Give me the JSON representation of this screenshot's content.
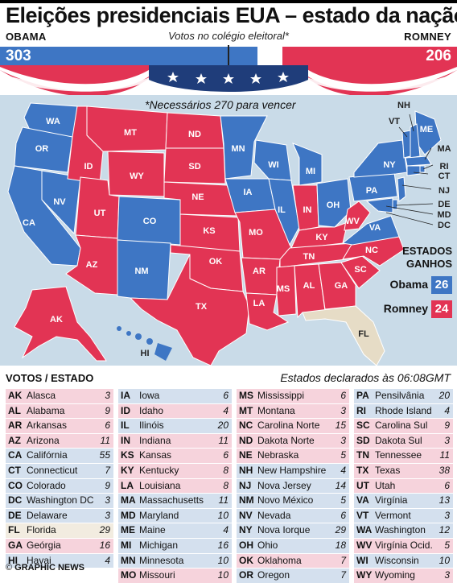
{
  "title": "Eleições presidenciais EUA – estado da nação",
  "subtitle": "Votos no colégio eleitoral*",
  "candidates": {
    "obama": {
      "name": "Obama",
      "votes": "303",
      "color": "#3e76c4"
    },
    "romney": {
      "name": "Romney",
      "votes": "206",
      "color": "#e23454"
    }
  },
  "needed_note": "*Necessários 270 para vencer",
  "legend": {
    "title_line1": "Estados",
    "title_line2": "ganhos",
    "obama_label": "Obama",
    "obama_count": "26",
    "romney_label": "Romney",
    "romney_count": "24"
  },
  "map_labels": [
    "WA",
    "OR",
    "CA",
    "NV",
    "ID",
    "MT",
    "WY",
    "UT",
    "AZ",
    "CO",
    "NM",
    "ND",
    "SD",
    "NE",
    "KS",
    "OK",
    "TX",
    "MN",
    "IA",
    "MO",
    "AR",
    "LA",
    "WI",
    "IL",
    "MI",
    "IN",
    "OH",
    "KY",
    "TN",
    "MS",
    "AL",
    "GA",
    "FL",
    "SC",
    "NC",
    "VA",
    "WV",
    "PA",
    "NY",
    "ME",
    "NH",
    "VT",
    "MA",
    "RI",
    "CT",
    "NJ",
    "DE",
    "MD",
    "DC",
    "AK",
    "HI"
  ],
  "table": {
    "header": "Votos / Estado",
    "declared": "Estados declarados às 06:08GMT",
    "columns": [
      [
        {
          "ab": "AK",
          "name": "Alasca",
          "ev": "3",
          "w": "R"
        },
        {
          "ab": "AL",
          "name": "Alabama",
          "ev": "9",
          "w": "R"
        },
        {
          "ab": "AR",
          "name": "Arkansas",
          "ev": "6",
          "w": "R"
        },
        {
          "ab": "AZ",
          "name": "Arizona",
          "ev": "11",
          "w": "R"
        },
        {
          "ab": "CA",
          "name": "Califórnia",
          "ev": "55",
          "w": "D"
        },
        {
          "ab": "CT",
          "name": "Connecticut",
          "ev": "7",
          "w": "D"
        },
        {
          "ab": "CO",
          "name": "Colorado",
          "ev": "9",
          "w": "D"
        },
        {
          "ab": "DC",
          "name": "Washington DC",
          "ev": "3",
          "w": "D"
        },
        {
          "ab": "DE",
          "name": "Delaware",
          "ev": "3",
          "w": "D"
        },
        {
          "ab": "FL",
          "name": "Florida",
          "ev": "29",
          "w": "U"
        },
        {
          "ab": "GA",
          "name": "Geórgia",
          "ev": "16",
          "w": "R"
        },
        {
          "ab": "HI",
          "name": "Havai",
          "ev": "4",
          "w": "D"
        }
      ],
      [
        {
          "ab": "IA",
          "name": "Iowa",
          "ev": "6",
          "w": "D"
        },
        {
          "ab": "ID",
          "name": "Idaho",
          "ev": "4",
          "w": "R"
        },
        {
          "ab": "IL",
          "name": "Ilinóis",
          "ev": "20",
          "w": "D"
        },
        {
          "ab": "IN",
          "name": "Indiana",
          "ev": "11",
          "w": "R"
        },
        {
          "ab": "KS",
          "name": "Kansas",
          "ev": "6",
          "w": "R"
        },
        {
          "ab": "KY",
          "name": "Kentucky",
          "ev": "8",
          "w": "R"
        },
        {
          "ab": "LA",
          "name": "Louisiana",
          "ev": "8",
          "w": "R"
        },
        {
          "ab": "MA",
          "name": "Massachusetts",
          "ev": "11",
          "w": "D"
        },
        {
          "ab": "MD",
          "name": "Maryland",
          "ev": "10",
          "w": "D"
        },
        {
          "ab": "ME",
          "name": "Maine",
          "ev": "4",
          "w": "D"
        },
        {
          "ab": "MI",
          "name": "Michigan",
          "ev": "16",
          "w": "D"
        },
        {
          "ab": "MN",
          "name": "Minnesota",
          "ev": "10",
          "w": "D"
        },
        {
          "ab": "MO",
          "name": "Missouri",
          "ev": "10",
          "w": "R"
        }
      ],
      [
        {
          "ab": "MS",
          "name": "Mississippi",
          "ev": "6",
          "w": "R"
        },
        {
          "ab": "MT",
          "name": "Montana",
          "ev": "3",
          "w": "R"
        },
        {
          "ab": "NC",
          "name": "Carolina Norte",
          "ev": "15",
          "w": "R"
        },
        {
          "ab": "ND",
          "name": "Dakota Norte",
          "ev": "3",
          "w": "R"
        },
        {
          "ab": "NE",
          "name": "Nebraska",
          "ev": "5",
          "w": "R"
        },
        {
          "ab": "NH",
          "name": "New Hampshire",
          "ev": "4",
          "w": "D"
        },
        {
          "ab": "NJ",
          "name": "Nova Jersey",
          "ev": "14",
          "w": "D"
        },
        {
          "ab": "NM",
          "name": "Novo México",
          "ev": "5",
          "w": "D"
        },
        {
          "ab": "NV",
          "name": "Nevada",
          "ev": "6",
          "w": "D"
        },
        {
          "ab": "NY",
          "name": "Nova Iorque",
          "ev": "29",
          "w": "D"
        },
        {
          "ab": "OH",
          "name": "Ohio",
          "ev": "18",
          "w": "D"
        },
        {
          "ab": "OK",
          "name": "Oklahoma",
          "ev": "7",
          "w": "R"
        },
        {
          "ab": "OR",
          "name": "Oregon",
          "ev": "7",
          "w": "D"
        }
      ],
      [
        {
          "ab": "PA",
          "name": "Pensilvânia",
          "ev": "20",
          "w": "D"
        },
        {
          "ab": "RI",
          "name": "Rhode Island",
          "ev": "4",
          "w": "D"
        },
        {
          "ab": "SC",
          "name": "Carolina Sul",
          "ev": "9",
          "w": "R"
        },
        {
          "ab": "SD",
          "name": "Dakota Sul",
          "ev": "3",
          "w": "R"
        },
        {
          "ab": "TN",
          "name": "Tennessee",
          "ev": "11",
          "w": "R"
        },
        {
          "ab": "TX",
          "name": "Texas",
          "ev": "38",
          "w": "R"
        },
        {
          "ab": "UT",
          "name": "Utah",
          "ev": "6",
          "w": "R"
        },
        {
          "ab": "VA",
          "name": "Virgínia",
          "ev": "13",
          "w": "D"
        },
        {
          "ab": "VT",
          "name": "Vermont",
          "ev": "3",
          "w": "D"
        },
        {
          "ab": "WA",
          "name": "Washington",
          "ev": "12",
          "w": "D"
        },
        {
          "ab": "WV",
          "name": "Virgínia Ocid.",
          "ev": "5",
          "w": "R"
        },
        {
          "ab": "WI",
          "name": "Wisconsin",
          "ev": "10",
          "w": "D"
        },
        {
          "ab": "WY",
          "name": "Wyoming",
          "ev": "3",
          "w": "R"
        }
      ]
    ]
  },
  "credit": "GRAPHIC NEWS",
  "credit_symbol": "©",
  "colors": {
    "dem": "#3e76c4",
    "rep": "#e23454",
    "undeclared": "#e6dcc6",
    "sea": "#c9dbe8"
  }
}
